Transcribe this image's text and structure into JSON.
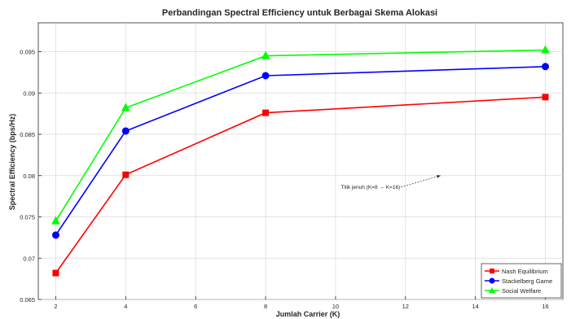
{
  "chart_data": {
    "type": "line",
    "title": "Perbandingan Spectral Efficiency untuk Berbagai Skema Alokasi",
    "xlabel": "Jumlah Carrier (K)",
    "ylabel": "Spectral Efficiency (bps/Hz)",
    "xlim": [
      1.5,
      16.5
    ],
    "ylim": [
      0.065,
      0.0985
    ],
    "xticks": [
      2,
      4,
      6,
      8,
      10,
      12,
      14,
      16
    ],
    "yticks": [
      0.065,
      0.07,
      0.075,
      0.08,
      0.085,
      0.09,
      0.095
    ],
    "ytick_labels": [
      "0.065",
      "0.07",
      "0.075",
      "0.08",
      "0.085",
      "0.09",
      "0.095"
    ],
    "grid": true,
    "legend_position": "bottom-right",
    "x": [
      2,
      4,
      8,
      16
    ],
    "series": [
      {
        "name": "Nash Equilibrium",
        "values": [
          0.0682,
          0.0801,
          0.0876,
          0.0895
        ],
        "color": "#ff0000",
        "marker": "square"
      },
      {
        "name": "Stackelberg Game",
        "values": [
          0.0728,
          0.0854,
          0.0921,
          0.0932
        ],
        "color": "#0000ff",
        "marker": "circle"
      },
      {
        "name": "Social Welfare",
        "values": [
          0.0745,
          0.0882,
          0.0945,
          0.0952
        ],
        "color": "#00ff00",
        "marker": "triangle"
      }
    ],
    "annotation": {
      "text": "Titik jenuh (K=8 → K=16)",
      "text_at": [
        11,
        0.0784
      ],
      "arrow_to": [
        13,
        0.08
      ]
    }
  }
}
